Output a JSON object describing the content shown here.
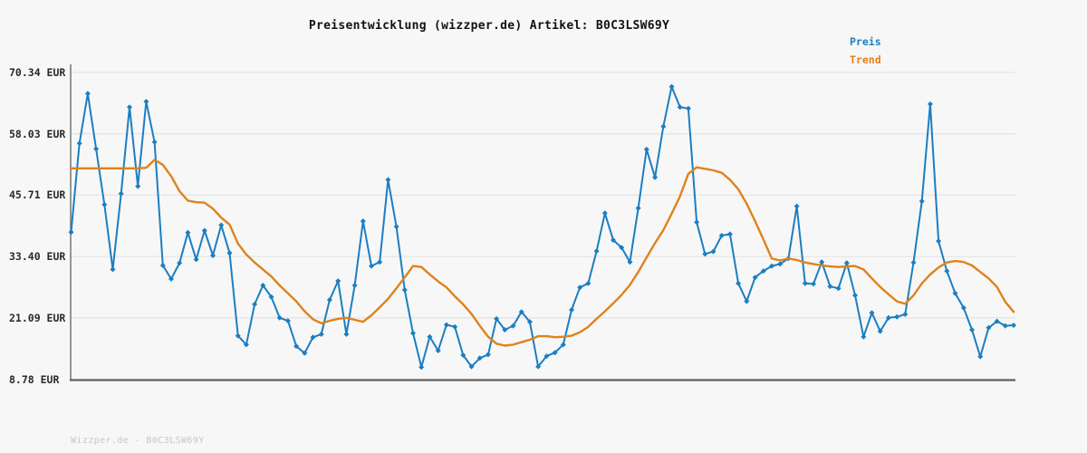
{
  "footer": "Wizzper.de - B0C3LSW69Y",
  "colors": {
    "background": "#f7f7f7",
    "grid": "#e5e5e5",
    "y_axis_line": "#7d7d7d",
    "x_axis_line": "#5f5f5f",
    "title": "#111111",
    "tick_label": "#2a2a2a",
    "watermark": "#c6c6c6",
    "preis_blue": "#1b7ec2",
    "trend_orange": "#e0821a"
  },
  "chart_data": {
    "type": "line",
    "title": "Preisentwicklung (wizzper.de) Artikel: B0C3LSW69Y",
    "currency": "EUR",
    "legend_position": "top-right",
    "grid": "horizontal",
    "ylim": [
      8.78,
      70.34
    ],
    "y_axis": {
      "min": 8.78,
      "max": 70.34,
      "ticks": [
        {
          "label": "70.34 EUR",
          "value": 70.34
        },
        {
          "label": "58.03 EUR",
          "value": 58.03
        },
        {
          "label": "45.71 EUR",
          "value": 45.71
        },
        {
          "label": "33.40 EUR",
          "value": 33.4
        },
        {
          "label": "21.09 EUR",
          "value": 21.09
        },
        {
          "label": "8.78 EUR",
          "value": 8.78
        }
      ]
    },
    "x_axis": {
      "tick_labels_visible": false
    },
    "series": [
      {
        "name": "Preis",
        "color": "#1b7ec2",
        "marker": "diamond",
        "values": [
          38.3,
          56.1,
          66.1,
          55.0,
          43.8,
          30.8,
          46.0,
          63.4,
          47.5,
          64.5,
          56.4,
          31.6,
          28.9,
          32.1,
          38.2,
          32.8,
          38.6,
          33.6,
          39.7,
          34.1,
          17.5,
          15.7,
          23.8,
          27.6,
          25.3,
          21.1,
          20.5,
          15.4,
          14.0,
          17.2,
          17.8,
          24.7,
          28.5,
          17.8,
          27.6,
          40.5,
          31.5,
          32.3,
          48.8,
          39.4,
          26.7,
          18.0,
          11.2,
          17.3,
          14.5,
          19.7,
          19.3,
          13.6,
          11.3,
          13.0,
          13.7,
          20.9,
          18.7,
          19.5,
          22.3,
          20.3,
          11.3,
          13.4,
          14.1,
          15.7,
          22.7,
          27.2,
          28.0,
          34.5,
          42.1,
          36.7,
          35.2,
          32.3,
          43.1,
          54.9,
          49.3,
          59.5,
          67.5,
          63.4,
          63.1,
          40.3,
          33.9,
          34.4,
          37.6,
          37.9,
          28.0,
          24.4,
          29.2,
          30.5,
          31.5,
          31.9,
          33.0,
          43.5,
          28.0,
          27.9,
          32.3,
          27.4,
          27.0,
          32.1,
          25.6,
          17.3,
          22.1,
          18.4,
          21.1,
          21.3,
          21.8,
          32.2,
          44.5,
          64.0,
          36.5,
          30.5,
          26.0,
          23.1,
          18.7,
          13.3,
          19.1,
          20.4,
          19.5,
          19.6
        ]
      },
      {
        "name": "Trend",
        "color": "#e0821a",
        "marker": "none",
        "values": [
          51.1,
          51.1,
          51.1,
          51.1,
          51.1,
          51.1,
          51.1,
          51.1,
          51.1,
          51.2,
          52.8,
          51.8,
          49.5,
          46.5,
          44.6,
          44.3,
          44.2,
          43.0,
          41.2,
          39.8,
          36.0,
          33.8,
          32.2,
          30.8,
          29.4,
          27.6,
          26.0,
          24.4,
          22.4,
          20.8,
          20.0,
          20.5,
          20.9,
          21.1,
          20.7,
          20.3,
          21.6,
          23.2,
          24.9,
          27.0,
          29.2,
          31.5,
          31.3,
          29.8,
          28.4,
          27.2,
          25.4,
          23.8,
          21.9,
          19.5,
          17.3,
          15.9,
          15.5,
          15.7,
          16.2,
          16.7,
          17.4,
          17.4,
          17.2,
          17.3,
          17.5,
          18.2,
          19.3,
          20.9,
          22.4,
          24.0,
          25.7,
          27.7,
          30.3,
          33.2,
          36.1,
          38.7,
          42.0,
          45.5,
          50.0,
          51.3,
          51.0,
          50.7,
          50.2,
          48.8,
          46.9,
          44.0,
          40.5,
          36.8,
          33.0,
          32.6,
          33.0,
          32.7,
          32.2,
          31.9,
          31.6,
          31.4,
          31.3,
          31.4,
          31.5,
          30.8,
          29.0,
          27.3,
          25.8,
          24.4,
          23.9,
          25.6,
          28.0,
          29.8,
          31.2,
          32.2,
          32.5,
          32.3,
          31.6,
          30.3,
          29.0,
          27.3,
          24.3,
          22.3
        ]
      }
    ]
  }
}
